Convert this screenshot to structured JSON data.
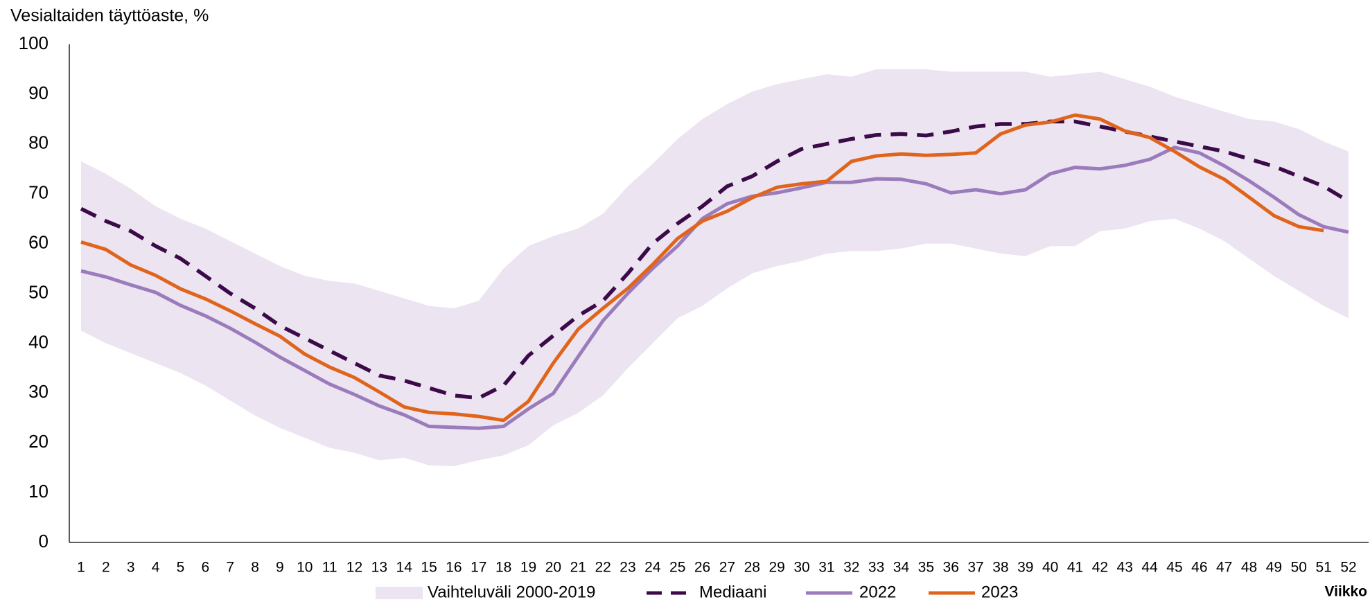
{
  "chart_data": {
    "type": "line",
    "y_label": "Vesialtaiden täyttöaste, %",
    "x_label": "Viikko",
    "categories": [
      1,
      2,
      3,
      4,
      5,
      6,
      7,
      8,
      9,
      10,
      11,
      12,
      13,
      14,
      15,
      16,
      17,
      18,
      19,
      20,
      21,
      22,
      23,
      24,
      25,
      26,
      27,
      28,
      29,
      30,
      31,
      32,
      33,
      34,
      35,
      36,
      37,
      38,
      39,
      40,
      41,
      42,
      43,
      44,
      45,
      46,
      47,
      48,
      49,
      50,
      51,
      52
    ],
    "ylim": [
      0,
      100
    ],
    "yticks": [
      0,
      10,
      20,
      30,
      40,
      50,
      60,
      70,
      80,
      90,
      100
    ],
    "band": {
      "name": "Vaihteluväli 2000-2019",
      "color": "#ece4f0",
      "upper": [
        76.5,
        74,
        71,
        67.5,
        65,
        63,
        60.5,
        58,
        55.5,
        53.5,
        52.5,
        52,
        50.5,
        49,
        47.5,
        47,
        48.5,
        55,
        59.5,
        61.5,
        63,
        66,
        71.5,
        76,
        81,
        85,
        88,
        90.5,
        92,
        93,
        94,
        93.5,
        95,
        95,
        95,
        94.5,
        94.5,
        94.5,
        94.5,
        93.5,
        94,
        94.5,
        93,
        91.5,
        89.5,
        88,
        86.5,
        85,
        84.5,
        83,
        80.5,
        78.5
      ],
      "lower": [
        42.5,
        40,
        38,
        36,
        34,
        31.5,
        28.5,
        25.5,
        23,
        21,
        19,
        18,
        16.5,
        17,
        15.5,
        15.3,
        16.5,
        17.5,
        19.5,
        23.5,
        26,
        29.5,
        35,
        40,
        45,
        47.5,
        51,
        54,
        55.5,
        56.5,
        58,
        58.5,
        58.5,
        59,
        60,
        60,
        59,
        58,
        57.5,
        59.5,
        59.5,
        62.5,
        63,
        64.5,
        65,
        63,
        60.5,
        57,
        53.5,
        50.5,
        47.5,
        45
      ]
    },
    "series": [
      {
        "name": "Mediaani",
        "color": "#3b0a48",
        "dashed": true,
        "values": [
          67,
          64.5,
          62.5,
          59.5,
          57,
          53.5,
          50,
          47,
          43.5,
          41,
          38.5,
          36,
          33.5,
          32.5,
          31,
          29.5,
          29,
          31.5,
          37.5,
          41.5,
          45.5,
          48.5,
          54,
          60,
          64,
          67.5,
          71.5,
          73.5,
          76.5,
          79,
          80,
          81,
          81.8,
          82,
          81.7,
          82.5,
          83.5,
          84,
          84,
          84.5,
          84.5,
          83.5,
          82.5,
          81.5,
          80.5,
          79.5,
          78.5,
          77,
          75.5,
          73.5,
          71.5,
          68.5
        ]
      },
      {
        "name": "2022",
        "color": "#9a7bbc",
        "dashed": false,
        "values": [
          54.5,
          53.3,
          51.7,
          50.2,
          47.6,
          45.5,
          43,
          40.2,
          37.2,
          34.5,
          31.8,
          29.7,
          27.4,
          25.6,
          23.3,
          23.1,
          22.9,
          23.3,
          26.8,
          29.9,
          37.3,
          44.5,
          50,
          55,
          59.5,
          65,
          68,
          69.5,
          70.2,
          71.2,
          72.3,
          72.3,
          73,
          72.9,
          72,
          70.2,
          70.8,
          70,
          70.8,
          74,
          75.3,
          75,
          75.7,
          76.9,
          79.3,
          78.2,
          75.6,
          72.6,
          69.3,
          65.8,
          63.4,
          62.3
        ]
      },
      {
        "name": "2023",
        "color": "#e0641b",
        "dashed": false,
        "values": [
          60.3,
          58.8,
          55.7,
          53.6,
          50.9,
          48.9,
          46.5,
          43.9,
          41.4,
          37.8,
          35.2,
          33.1,
          30.2,
          27.2,
          26.1,
          25.8,
          25.3,
          24.5,
          28.3,
          36,
          42.8,
          47,
          51,
          55.8,
          61,
          64.5,
          66.5,
          69.2,
          71.3,
          72,
          72.5,
          76.5,
          77.6,
          78,
          77.7,
          77.9,
          78.2,
          82,
          83.8,
          84.4,
          85.8,
          85,
          82.6,
          81.3,
          78.5,
          75.4,
          72.9,
          69.3,
          65.6,
          63.4,
          62.6,
          null
        ]
      }
    ]
  }
}
